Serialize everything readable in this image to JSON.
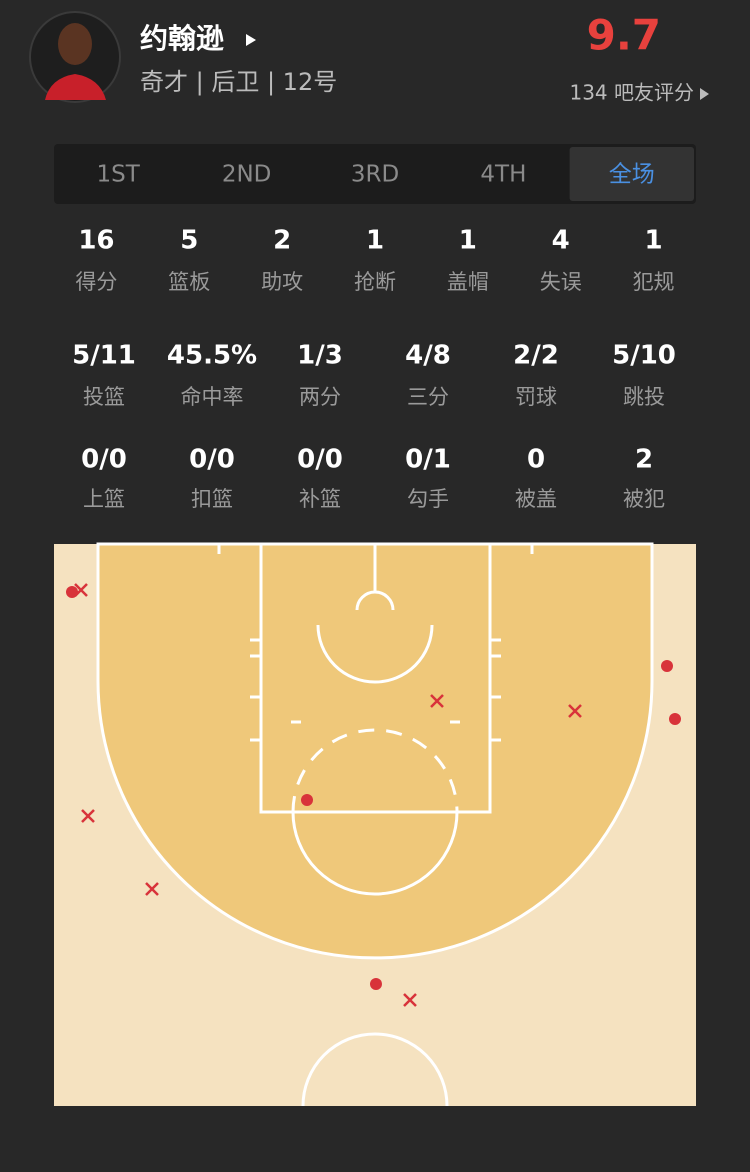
{
  "header": {
    "name": "约翰逊",
    "subtitle": "奇才 | 后卫 | 12号",
    "rating": "9.7",
    "rating_count": "134 吧友评分"
  },
  "tabs": {
    "items": [
      "1ST",
      "2ND",
      "3RD",
      "4TH",
      "全场"
    ],
    "selected": 4
  },
  "stats": {
    "rows": [
      {
        "items": [
          {
            "value": "16",
            "label": "得分"
          },
          {
            "value": "5",
            "label": "篮板"
          },
          {
            "value": "2",
            "label": "助攻"
          },
          {
            "value": "1",
            "label": "抢断"
          },
          {
            "value": "1",
            "label": "盖帽"
          },
          {
            "value": "4",
            "label": "失误"
          },
          {
            "value": "1",
            "label": "犯规"
          }
        ]
      },
      {
        "items": [
          {
            "value": "5/11",
            "label": "投篮"
          },
          {
            "value": "45.5%",
            "label": "命中率"
          },
          {
            "value": "1/3",
            "label": "两分"
          },
          {
            "value": "4/8",
            "label": "三分"
          },
          {
            "value": "2/2",
            "label": "罚球"
          },
          {
            "value": "5/10",
            "label": "跳投"
          }
        ]
      },
      {
        "items": [
          {
            "value": "0/0",
            "label": "上篮"
          },
          {
            "value": "0/0",
            "label": "扣篮"
          },
          {
            "value": "0/0",
            "label": "补篮"
          },
          {
            "value": "0/1",
            "label": "勾手"
          },
          {
            "value": "0",
            "label": "被盖"
          },
          {
            "value": "2",
            "label": "被犯"
          }
        ]
      }
    ]
  }
}
